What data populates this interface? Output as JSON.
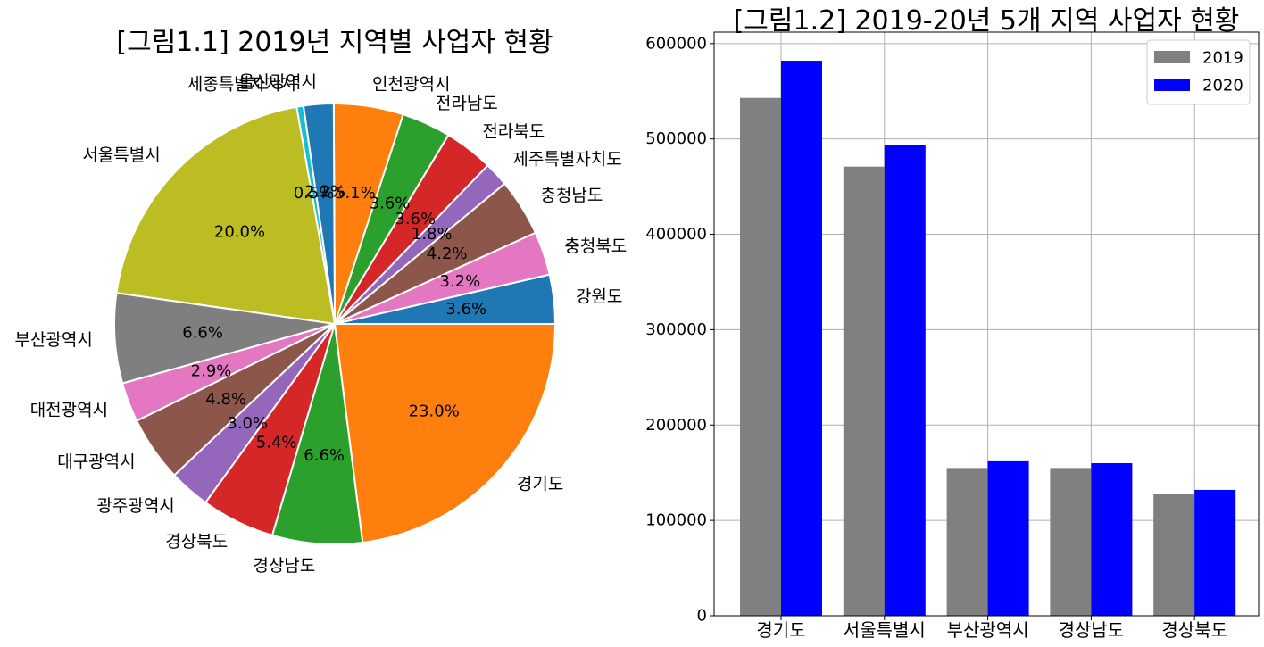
{
  "chart_data": [
    {
      "type": "pie",
      "title": "[그림1.1] 2019년 지역별 사업자 현황",
      "labels": [
        "강원도",
        "충청북도",
        "충청남도",
        "제주특별자치도",
        "전라북도",
        "전라남도",
        "인천광역시",
        "울산광역시",
        "세종특별자치시",
        "서울특별시",
        "부산광역시",
        "대전광역시",
        "대구광역시",
        "광주광역시",
        "경상북도",
        "경상남도",
        "경기도"
      ],
      "percent_labels": [
        "3.6%",
        "3.2%",
        "4.2%",
        "1.8%",
        "3.6%",
        "3.6%",
        "5.1%",
        "2.2%",
        "0.5%",
        "20.0%",
        "6.6%",
        "2.9%",
        "4.8%",
        "3.0%",
        "5.4%",
        "6.6%",
        "23.0%"
      ],
      "values": [
        3.6,
        3.2,
        4.2,
        1.8,
        3.6,
        3.6,
        5.1,
        2.2,
        0.5,
        20.0,
        6.6,
        2.9,
        4.8,
        3.0,
        5.4,
        6.6,
        23.0
      ],
      "colors": [
        "#1f77b4",
        "#e377c2",
        "#8c564b",
        "#9467bd",
        "#d62728",
        "#2ca02c",
        "#ff7f0e",
        "#1f77b4",
        "#17becf",
        "#bcbd22",
        "#7f7f7f",
        "#e377c2",
        "#8c564b",
        "#9467bd",
        "#d62728",
        "#2ca02c",
        "#ff7f0e"
      ],
      "start_angle_deg": 0,
      "direction": "counterclockwise"
    },
    {
      "type": "bar",
      "title": "[그림1.2] 2019-20년 5개 지역 사업자 현황",
      "categories": [
        "경기도",
        "서울특별시",
        "부산광역시",
        "경상남도",
        "경상북도"
      ],
      "series": [
        {
          "name": "2019",
          "color": "#808080",
          "values": [
            543000,
            471000,
            155000,
            155000,
            128000
          ]
        },
        {
          "name": "2020",
          "color": "#0000ff",
          "values": [
            582000,
            494000,
            162000,
            160000,
            132000
          ]
        }
      ],
      "ylim": [
        0,
        612000
      ],
      "yticks": [
        0,
        100000,
        200000,
        300000,
        400000,
        500000,
        600000
      ],
      "grid": true,
      "legend_position": "top-right"
    }
  ]
}
